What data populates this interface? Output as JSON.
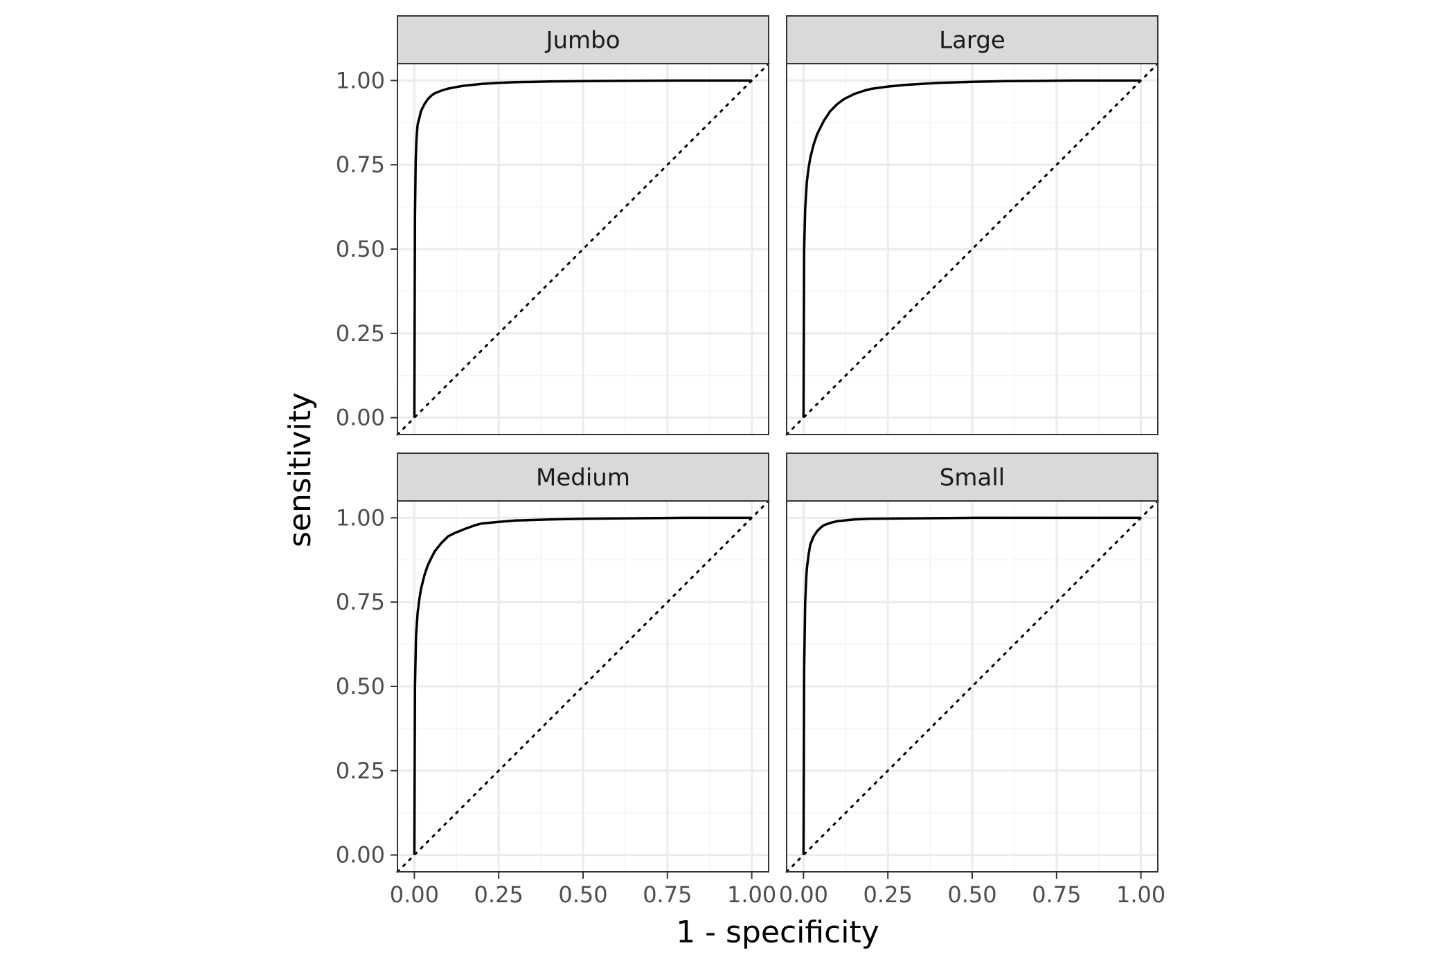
{
  "chart_data": {
    "type": "line",
    "xlabel": "1 - specificity",
    "ylabel": "sensitivity",
    "xlim": [
      -0.05,
      1.05
    ],
    "ylim": [
      -0.05,
      1.05
    ],
    "x_ticks": [
      "0.00",
      "0.25",
      "0.50",
      "0.75",
      "1.00"
    ],
    "y_ticks": [
      "0.00",
      "0.25",
      "0.50",
      "0.75",
      "1.00"
    ],
    "grid": true,
    "reference_line": "diagonal-dotted",
    "panels": [
      {
        "label": "Jumbo",
        "x": [
          0,
          0.002,
          0.004,
          0.006,
          0.008,
          0.01,
          0.015,
          0.02,
          0.03,
          0.04,
          0.05,
          0.06,
          0.08,
          0.1,
          0.12,
          0.15,
          0.2,
          0.25,
          0.3,
          0.4,
          0.5,
          0.6,
          0.7,
          0.8,
          0.9,
          1.0
        ],
        "y": [
          0,
          0.6,
          0.76,
          0.82,
          0.85,
          0.87,
          0.89,
          0.91,
          0.93,
          0.945,
          0.955,
          0.962,
          0.97,
          0.976,
          0.98,
          0.985,
          0.99,
          0.993,
          0.995,
          0.997,
          0.998,
          0.999,
          0.9995,
          1.0,
          1.0,
          1.0
        ]
      },
      {
        "label": "Large",
        "x": [
          0,
          0.002,
          0.005,
          0.01,
          0.015,
          0.02,
          0.03,
          0.04,
          0.05,
          0.06,
          0.08,
          0.1,
          0.12,
          0.15,
          0.18,
          0.2,
          0.25,
          0.3,
          0.35,
          0.4,
          0.5,
          0.6,
          0.7,
          0.8,
          0.9,
          1.0
        ],
        "y": [
          0,
          0.5,
          0.62,
          0.7,
          0.74,
          0.77,
          0.81,
          0.84,
          0.86,
          0.88,
          0.91,
          0.93,
          0.945,
          0.96,
          0.97,
          0.975,
          0.982,
          0.987,
          0.99,
          0.993,
          0.996,
          0.998,
          0.999,
          1.0,
          1.0,
          1.0
        ]
      },
      {
        "label": "Medium",
        "x": [
          0,
          0.002,
          0.005,
          0.01,
          0.015,
          0.02,
          0.03,
          0.04,
          0.05,
          0.06,
          0.08,
          0.1,
          0.12,
          0.15,
          0.18,
          0.2,
          0.25,
          0.3,
          0.4,
          0.5,
          0.6,
          0.7,
          0.8,
          0.9,
          1.0
        ],
        "y": [
          0,
          0.5,
          0.65,
          0.72,
          0.76,
          0.79,
          0.83,
          0.86,
          0.88,
          0.9,
          0.925,
          0.945,
          0.955,
          0.967,
          0.978,
          0.983,
          0.988,
          0.992,
          0.995,
          0.997,
          0.998,
          0.999,
          1.0,
          1.0,
          1.0
        ]
      },
      {
        "label": "Small",
        "x": [
          0,
          0.002,
          0.005,
          0.008,
          0.01,
          0.015,
          0.02,
          0.03,
          0.04,
          0.05,
          0.06,
          0.08,
          0.1,
          0.15,
          0.2,
          0.3,
          0.4,
          0.5,
          0.6,
          0.8,
          1.0
        ],
        "y": [
          0,
          0.55,
          0.75,
          0.82,
          0.85,
          0.89,
          0.92,
          0.945,
          0.96,
          0.97,
          0.978,
          0.985,
          0.99,
          0.995,
          0.997,
          0.998,
          0.999,
          1.0,
          1.0,
          1.0,
          1.0
        ]
      }
    ]
  },
  "colors": {
    "curve": "#000000",
    "strip_fill": "#d9d9d9",
    "strip_border": "#333333",
    "panel_border": "#333333",
    "grid_major": "#ebebeb",
    "grid_minor": "#f5f5f5",
    "tick_text": "#4d4d4d"
  }
}
